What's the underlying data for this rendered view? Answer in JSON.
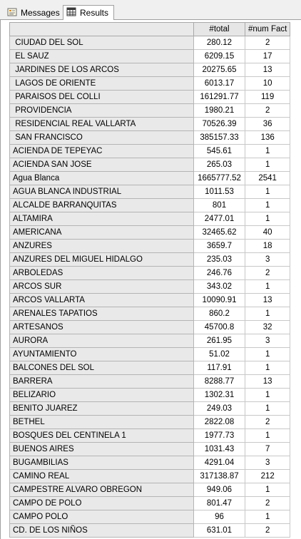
{
  "tabs": {
    "messages_label": "Messages",
    "results_label": "Results"
  },
  "columns": {
    "total": "#total",
    "num_fact": "#num Fact"
  },
  "rows": [
    {
      "name": " CIUDAD DEL SOL",
      "total": "280.12",
      "num_fact": "2"
    },
    {
      "name": " EL SAUZ",
      "total": "6209.15",
      "num_fact": "17"
    },
    {
      "name": " JARDINES DE LOS ARCOS",
      "total": "20275.65",
      "num_fact": "13"
    },
    {
      "name": " LAGOS DE ORIENTE",
      "total": "6013.17",
      "num_fact": "10"
    },
    {
      "name": " PARAISOS DEL COLLI",
      "total": "161291.77",
      "num_fact": "119"
    },
    {
      "name": " PROVIDENCIA",
      "total": "1980.21",
      "num_fact": "2"
    },
    {
      "name": " RESIDENCIAL REAL VALLARTA",
      "total": "70526.39",
      "num_fact": "36"
    },
    {
      "name": " SAN FRANCISCO",
      "total": "385157.33",
      "num_fact": "136"
    },
    {
      "name": "ACIENDA DE TEPEYAC",
      "total": "545.61",
      "num_fact": "1"
    },
    {
      "name": "ACIENDA SAN JOSE",
      "total": "265.03",
      "num_fact": "1"
    },
    {
      "name": "Agua Blanca",
      "total": "1665777.52",
      "num_fact": "2541"
    },
    {
      "name": "AGUA BLANCA INDUSTRIAL",
      "total": "1011.53",
      "num_fact": "1"
    },
    {
      "name": "ALCALDE BARRANQUITAS",
      "total": "801",
      "num_fact": "1"
    },
    {
      "name": "ALTAMIRA",
      "total": "2477.01",
      "num_fact": "1"
    },
    {
      "name": "AMERICANA",
      "total": "32465.62",
      "num_fact": "40"
    },
    {
      "name": "ANZURES",
      "total": "3659.7",
      "num_fact": "18"
    },
    {
      "name": "ANZURES DEL MIGUEL HIDALGO",
      "total": "235.03",
      "num_fact": "3"
    },
    {
      "name": "ARBOLEDAS",
      "total": "246.76",
      "num_fact": "2"
    },
    {
      "name": "ARCOS SUR",
      "total": "343.02",
      "num_fact": "1"
    },
    {
      "name": "ARCOS VALLARTA",
      "total": "10090.91",
      "num_fact": "13"
    },
    {
      "name": "ARENALES TAPATIOS",
      "total": "860.2",
      "num_fact": "1"
    },
    {
      "name": "ARTESANOS",
      "total": "45700.8",
      "num_fact": "32"
    },
    {
      "name": "AURORA",
      "total": "261.95",
      "num_fact": "3"
    },
    {
      "name": "AYUNTAMIENTO",
      "total": "51.02",
      "num_fact": "1"
    },
    {
      "name": "BALCONES DEL SOL",
      "total": "117.91",
      "num_fact": "1"
    },
    {
      "name": "BARRERA",
      "total": "8288.77",
      "num_fact": "13"
    },
    {
      "name": "BELIZARIO",
      "total": "1302.31",
      "num_fact": "1"
    },
    {
      "name": "BENITO JUAREZ",
      "total": "249.03",
      "num_fact": "1"
    },
    {
      "name": "BETHEL",
      "total": "2822.08",
      "num_fact": "2"
    },
    {
      "name": "BOSQUES DEL CENTINELA 1",
      "total": "1977.73",
      "num_fact": "1"
    },
    {
      "name": "BUENOS AIRES",
      "total": "1031.43",
      "num_fact": "7"
    },
    {
      "name": "BUGAMBILIAS",
      "total": "4291.04",
      "num_fact": "3"
    },
    {
      "name": "CAMINO REAL",
      "total": "317138.87",
      "num_fact": "212"
    },
    {
      "name": "CAMPESTRE ALVARO OBREGON",
      "total": "949.06",
      "num_fact": "1"
    },
    {
      "name": "CAMPO DE POLO",
      "total": "801.47",
      "num_fact": "2"
    },
    {
      "name": "CAMPO POLO",
      "total": "96",
      "num_fact": "1"
    },
    {
      "name": "CD. DE LOS NIÑOS",
      "total": "631.01",
      "num_fact": "2"
    }
  ]
}
